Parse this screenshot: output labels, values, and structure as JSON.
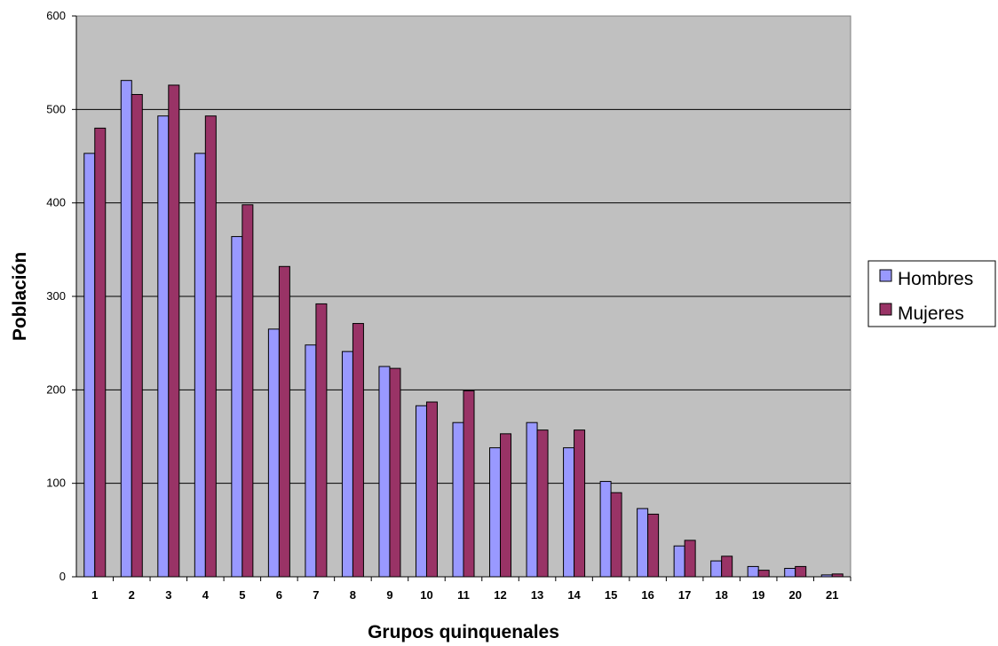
{
  "chart_data": {
    "type": "bar",
    "xlabel": "Grupos quinquenales",
    "ylabel": "Población",
    "ylim": [
      0,
      600
    ],
    "yticks": [
      "0",
      "100",
      "200",
      "300",
      "400",
      "500",
      "600"
    ],
    "grid": true,
    "legend_position": "right",
    "categories": [
      "1",
      "2",
      "3",
      "4",
      "5",
      "6",
      "7",
      "8",
      "9",
      "10",
      "11",
      "12",
      "13",
      "14",
      "15",
      "16",
      "17",
      "18",
      "19",
      "20",
      "21"
    ],
    "series": [
      {
        "name": "Hombres",
        "color": "#9999ff",
        "values": [
          453,
          531,
          493,
          453,
          364,
          265,
          248,
          241,
          225,
          183,
          165,
          138,
          165,
          138,
          102,
          73,
          33,
          17,
          11,
          9,
          2
        ]
      },
      {
        "name": "Mujeres",
        "color": "#993366",
        "values": [
          480,
          516,
          526,
          493,
          398,
          332,
          292,
          271,
          223,
          187,
          199,
          153,
          157,
          157,
          90,
          67,
          39,
          22,
          7,
          11,
          3
        ]
      }
    ],
    "plot_background": "#c0c0c0"
  }
}
